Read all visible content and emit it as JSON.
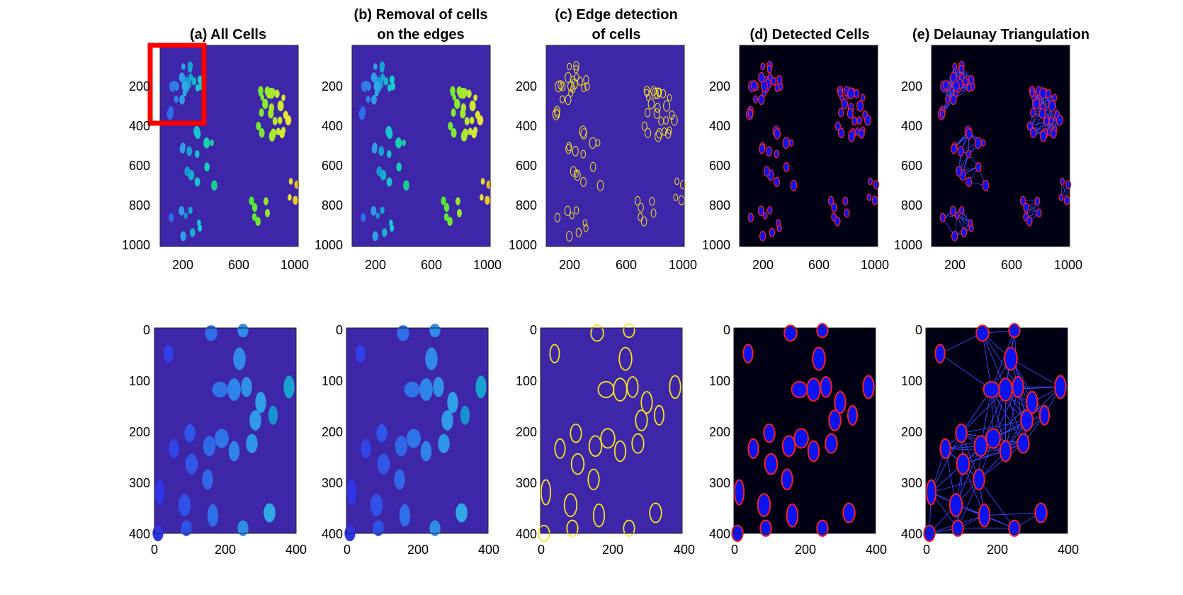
{
  "figure": {
    "panels": [
      {
        "id": "a",
        "title_lines": [
          "(a) All Cells"
        ],
        "style": "labels"
      },
      {
        "id": "b",
        "title_lines": [
          "(b) Removal of cells",
          "on the edges"
        ],
        "style": "labels"
      },
      {
        "id": "c",
        "title_lines": [
          "(c) Edge detection",
          "of cells"
        ],
        "style": "edges"
      },
      {
        "id": "d",
        "title_lines": [
          "(d) Detected Cells"
        ],
        "style": "detected"
      },
      {
        "id": "e",
        "title_lines": [
          "(e) Delaunay Triangulation"
        ],
        "style": "delaunay"
      }
    ],
    "top_row": {
      "x_ticks": [
        "200",
        "600",
        "1000"
      ],
      "y_ticks": [
        "200",
        "400",
        "600",
        "800",
        "1000"
      ]
    },
    "bottom_row": {
      "x_ticks": [
        "0",
        "200",
        "400"
      ],
      "y_ticks": [
        "0",
        "100",
        "200",
        "300",
        "400"
      ]
    },
    "colors": {
      "label_bg": "#3E26A8",
      "detected_bg": "#000014",
      "cell_blue": "#0A14F0",
      "outline_red": "#FF1E1E",
      "edge_yellow": "#F5E61E",
      "triangulation_line": "#3C46FF",
      "zoom_box": "#FF0000"
    }
  }
}
